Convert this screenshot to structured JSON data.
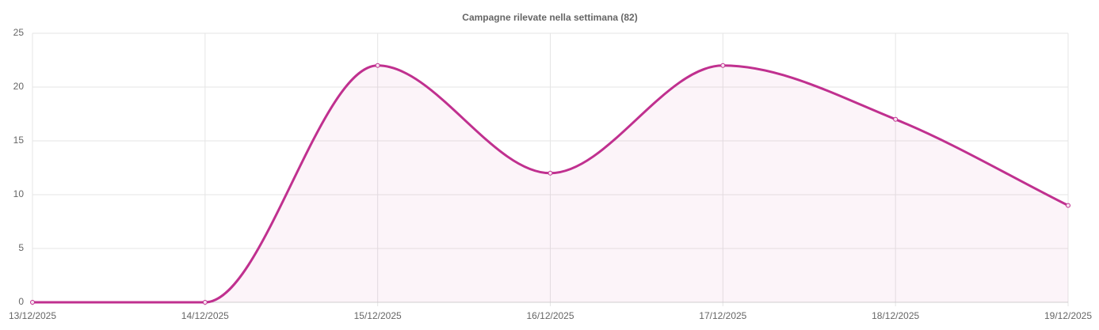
{
  "chart_data": {
    "type": "line",
    "title": "Campagne rilevate nella settimana (82)",
    "categories": [
      "13/12/2025",
      "14/12/2025",
      "15/12/2025",
      "16/12/2025",
      "17/12/2025",
      "18/12/2025",
      "19/12/2025"
    ],
    "series": [
      {
        "color": "#c0308f",
        "values": [
          0,
          0,
          22,
          12,
          22,
          17,
          9
        ]
      }
    ],
    "ylim": [
      0,
      25
    ],
    "yticks": [
      0,
      5,
      10,
      15,
      20,
      25
    ],
    "grid": true,
    "fill": true
  }
}
